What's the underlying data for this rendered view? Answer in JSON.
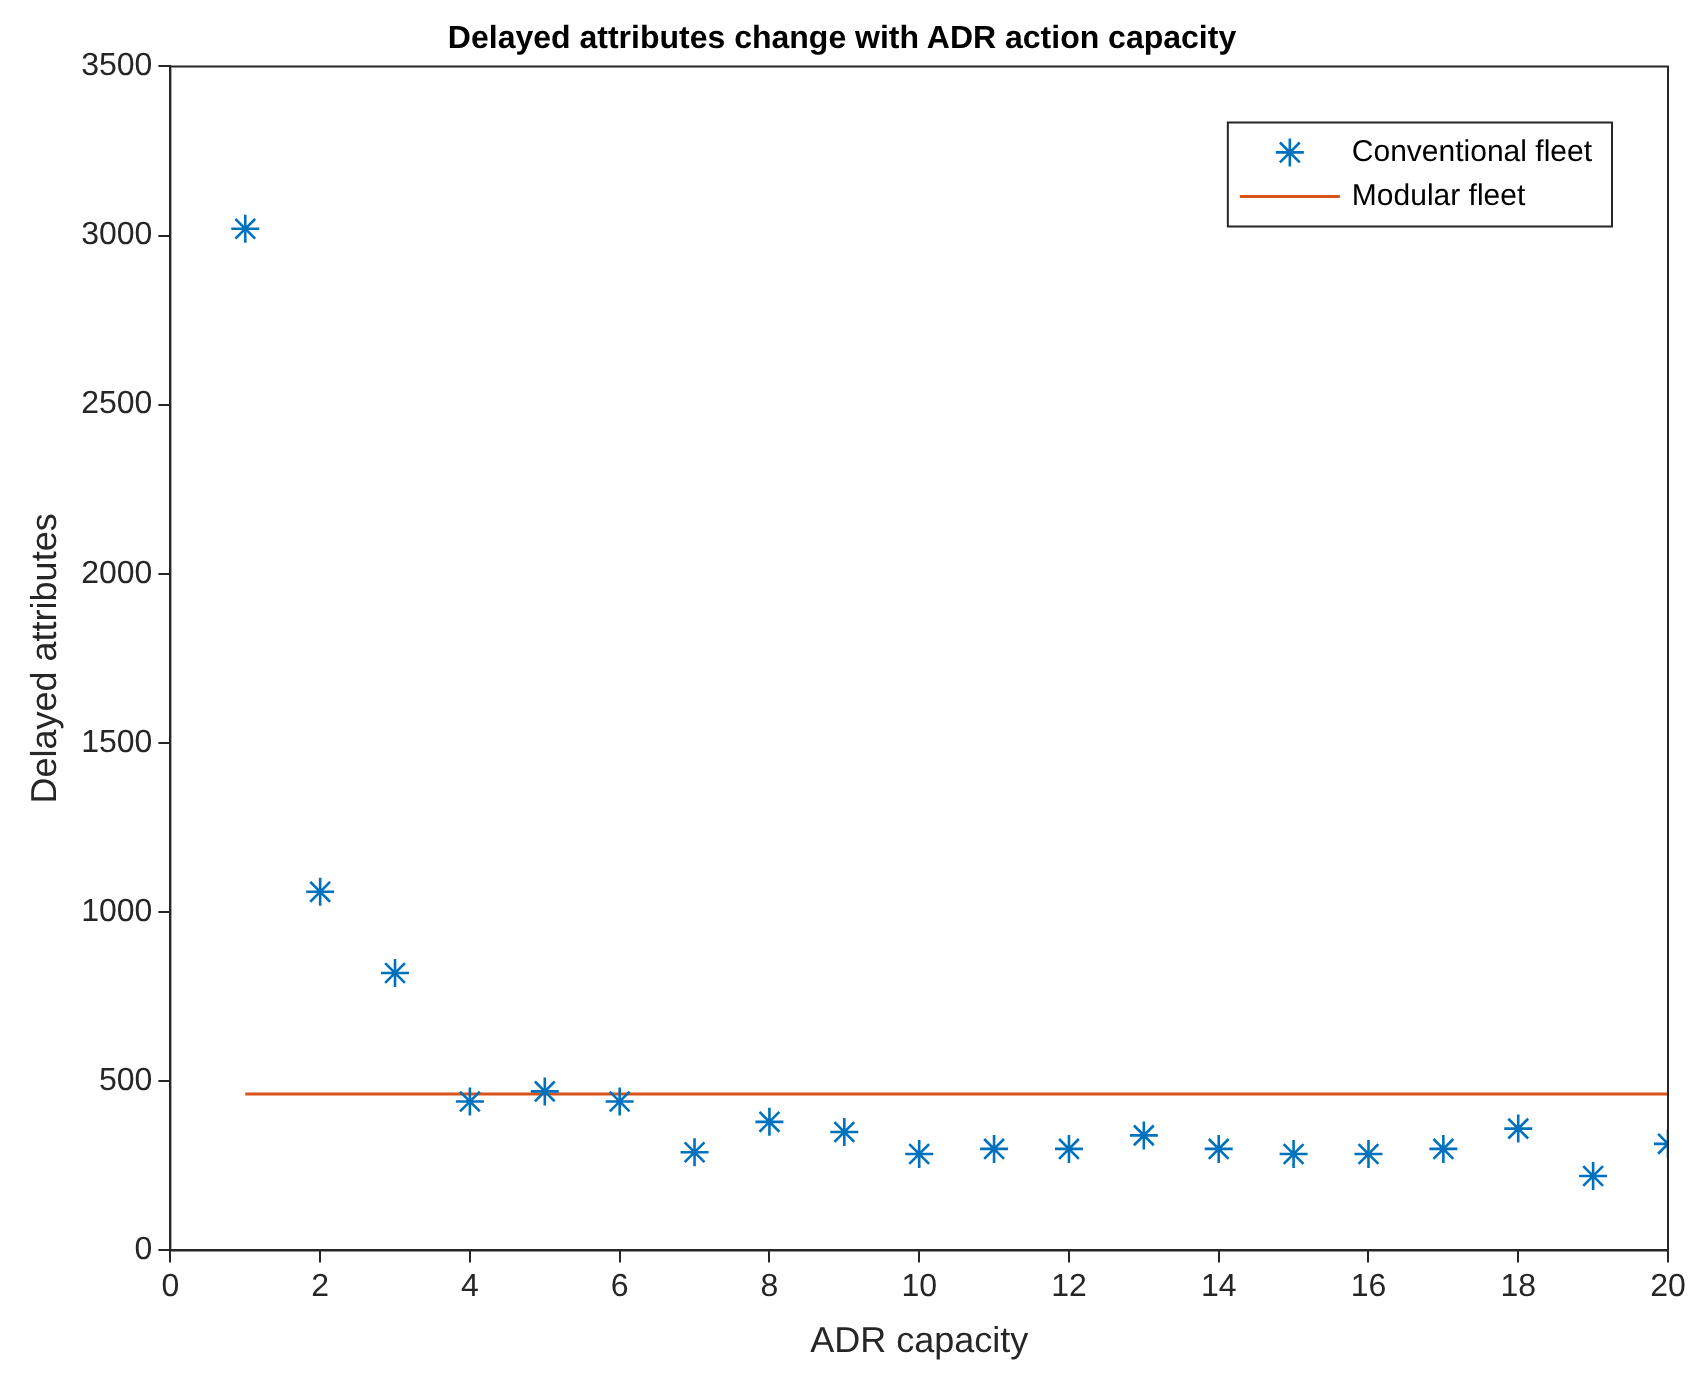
{
  "chart_data": {
    "type": "scatter",
    "title": "Delayed attributes change with ADR action capacity",
    "xlabel": "ADR capacity",
    "ylabel": "Delayed attributes",
    "xlim": [
      0,
      20
    ],
    "xticks": [
      0,
      2,
      4,
      6,
      8,
      10,
      12,
      14,
      16,
      18,
      20
    ],
    "ylim": [
      0,
      3500
    ],
    "yticks": [
      0,
      500,
      1000,
      1500,
      2000,
      2500,
      3000,
      3500
    ],
    "grid": false,
    "legend": "top right",
    "series": [
      {
        "name": "Conventional fleet",
        "type": "scatter",
        "marker": "cross",
        "color": "#0072bd",
        "x": [
          1,
          2,
          3,
          4,
          5,
          6,
          7,
          8,
          9,
          10,
          11,
          12,
          13,
          14,
          15,
          16,
          17,
          18,
          19,
          20
        ],
        "values": [
          3020,
          1060,
          820,
          440,
          470,
          440,
          290,
          380,
          350,
          285,
          300,
          300,
          340,
          300,
          285,
          285,
          300,
          360,
          220,
          315
        ]
      },
      {
        "name": "Modular fleet",
        "type": "line",
        "marker": "none",
        "color": "#d95319",
        "x": [
          1,
          20
        ],
        "values": [
          462,
          462
        ]
      }
    ]
  }
}
